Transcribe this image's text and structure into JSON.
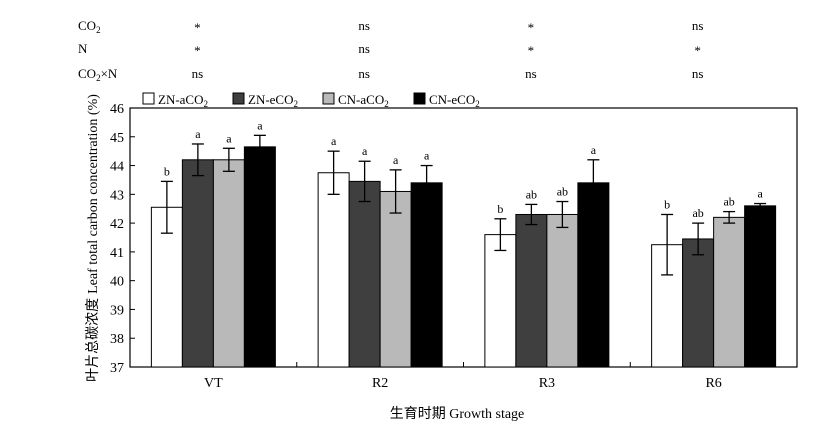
{
  "chart_data": {
    "type": "bar",
    "xlabel": "生育时期 Growth stage",
    "ylabel_cn": "叶片总碳浓度",
    "ylabel_en": "Leaf total carbon concentration (%)",
    "ylim": [
      37,
      46
    ],
    "yticks": [
      37,
      38,
      39,
      40,
      41,
      42,
      43,
      44,
      45,
      46
    ],
    "categories": [
      "VT",
      "R2",
      "R3",
      "R6"
    ],
    "legend_position": "top-left",
    "series": [
      {
        "name": "ZN-aCO",
        "sub": "2",
        "color": "#ffffff",
        "values": [
          42.55,
          43.75,
          41.6,
          41.25
        ],
        "errors": [
          0.9,
          0.75,
          0.55,
          1.05
        ],
        "letters": [
          "b",
          "a",
          "b",
          "b"
        ]
      },
      {
        "name": "ZN-eCO",
        "sub": "2",
        "color": "#3f3f3f",
        "values": [
          44.2,
          43.45,
          42.3,
          41.45
        ],
        "errors": [
          0.55,
          0.7,
          0.35,
          0.55
        ],
        "letters": [
          "a",
          "a",
          "ab",
          "ab"
        ]
      },
      {
        "name": "CN-aCO",
        "sub": "2",
        "color": "#b9b9b9",
        "values": [
          44.2,
          43.1,
          42.3,
          42.2
        ],
        "errors": [
          0.4,
          0.75,
          0.45,
          0.2
        ],
        "letters": [
          "a",
          "a",
          "ab",
          "ab"
        ]
      },
      {
        "name": "CN-eCO",
        "sub": "2",
        "color": "#000000",
        "values": [
          44.65,
          43.4,
          43.4,
          42.6
        ],
        "errors": [
          0.4,
          0.6,
          0.8,
          0.08
        ],
        "letters": [
          "a",
          "a",
          "a",
          "a"
        ]
      }
    ],
    "significance": [
      {
        "factor": "CO",
        "sub": "2",
        "rest": "",
        "values": [
          "*",
          "ns",
          "*",
          "ns"
        ]
      },
      {
        "factor": "N",
        "sub": "",
        "rest": "",
        "values": [
          "*",
          "ns",
          "*",
          "*"
        ]
      },
      {
        "factor": "CO",
        "sub": "2",
        "rest": "×N",
        "values": [
          "ns",
          "ns",
          "ns",
          "ns"
        ]
      }
    ]
  }
}
